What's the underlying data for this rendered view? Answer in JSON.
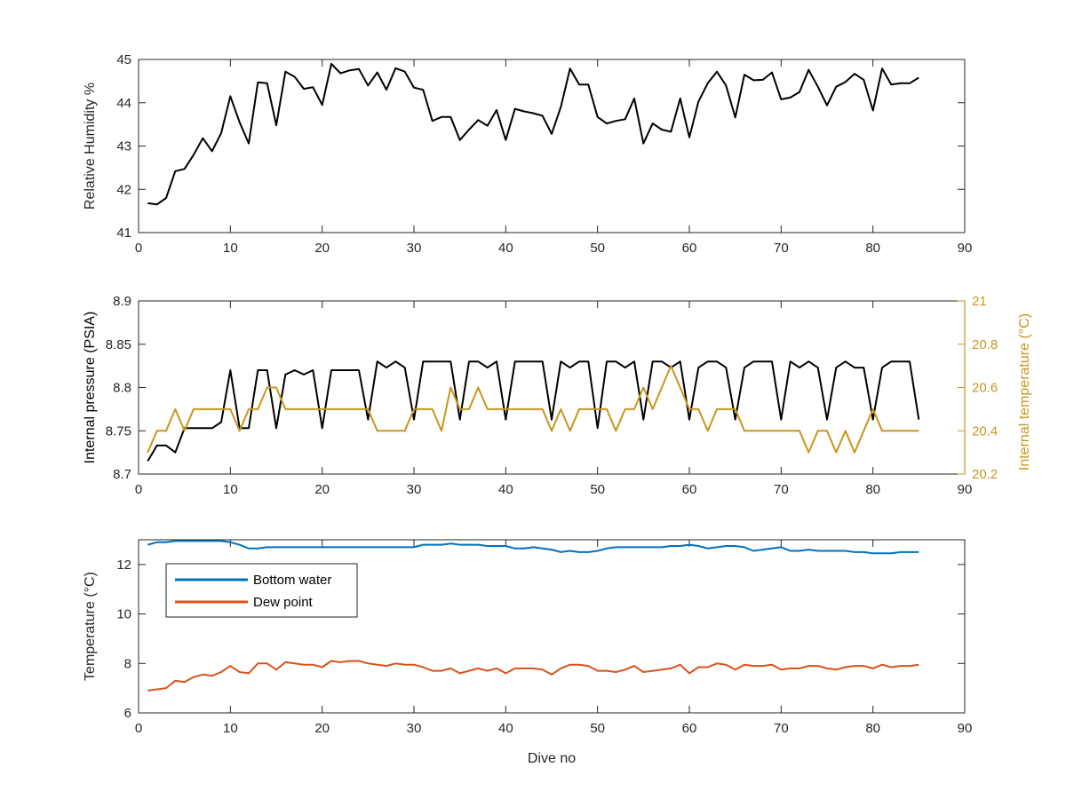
{
  "chart_data": [
    {
      "type": "line",
      "xlabel": "",
      "ylabel": "Relative Humidity %",
      "xlim": [
        0,
        90
      ],
      "ylim": [
        41,
        45
      ],
      "xticks": [
        0,
        10,
        20,
        30,
        40,
        50,
        60,
        70,
        80,
        90
      ],
      "yticks": [
        41,
        42,
        43,
        44,
        45
      ],
      "grid": false,
      "series": [
        {
          "color": "#000000",
          "x": [
            1,
            2,
            3,
            4,
            5,
            6,
            7,
            8,
            9,
            10,
            11,
            12,
            13,
            14,
            15,
            16,
            17,
            18,
            19,
            20,
            21,
            22,
            23,
            24,
            25,
            26,
            27,
            28,
            29,
            30,
            31,
            32,
            33,
            34,
            35,
            36,
            37,
            38,
            39,
            40,
            41,
            42,
            43,
            44,
            45,
            46,
            47,
            48,
            49,
            50,
            51,
            52,
            53,
            54,
            55,
            56,
            57,
            58,
            59,
            60,
            61,
            62,
            63,
            64,
            65,
            66,
            67,
            68,
            69,
            70,
            71,
            72,
            73,
            74,
            75,
            76,
            77,
            78,
            79,
            80,
            81,
            82,
            83,
            84,
            85
          ],
          "y": [
            41.68,
            41.65,
            41.8,
            42.42,
            42.47,
            42.8,
            43.18,
            42.88,
            43.3,
            44.15,
            43.55,
            43.06,
            44.47,
            44.45,
            43.48,
            44.72,
            44.6,
            44.32,
            44.36,
            43.95,
            44.9,
            44.68,
            44.75,
            44.78,
            44.4,
            44.7,
            44.3,
            44.8,
            44.72,
            44.35,
            44.3,
            43.58,
            43.67,
            43.67,
            43.14,
            43.38,
            43.6,
            43.47,
            43.83,
            43.14,
            43.86,
            43.8,
            43.76,
            43.7,
            43.28,
            43.9,
            44.79,
            44.42,
            44.42,
            43.67,
            43.52,
            43.58,
            43.62,
            44.1,
            43.06,
            43.52,
            43.38,
            43.33,
            44.1,
            43.2,
            44.03,
            44.45,
            44.72,
            44.4,
            43.66,
            44.65,
            44.52,
            44.53,
            44.7,
            44.08,
            44.12,
            44.25,
            44.76,
            44.37,
            43.94,
            44.37,
            44.48,
            44.67,
            44.53,
            43.82,
            44.79,
            44.42,
            44.45,
            44.45,
            44.58
          ]
        }
      ]
    },
    {
      "type": "line",
      "xlabel": "",
      "ylabel": "Internal pressure (PSIA)",
      "ylabel_right": "Internal temperature (°C)",
      "xlim": [
        0,
        90
      ],
      "ylim": [
        8.7,
        8.9
      ],
      "ylim_right": [
        20.2,
        21
      ],
      "xticks": [
        0,
        10,
        20,
        30,
        40,
        50,
        60,
        70,
        80,
        90
      ],
      "yticks": [
        "8.7",
        "8.75",
        "8.8",
        "8.85",
        "8.9"
      ],
      "yticks_right": [
        "20.2",
        "20.4",
        "20.6",
        "20.8",
        "21"
      ],
      "grid": false,
      "series": [
        {
          "axis": "left",
          "color": "#000000",
          "x": [
            1,
            2,
            3,
            4,
            5,
            6,
            7,
            8,
            9,
            10,
            11,
            12,
            13,
            14,
            15,
            16,
            17,
            18,
            19,
            20,
            21,
            22,
            23,
            24,
            25,
            26,
            27,
            28,
            29,
            30,
            31,
            32,
            33,
            34,
            35,
            36,
            37,
            38,
            39,
            40,
            41,
            42,
            43,
            44,
            45,
            46,
            47,
            48,
            49,
            50,
            51,
            52,
            53,
            54,
            55,
            56,
            57,
            58,
            59,
            60,
            61,
            62,
            63,
            64,
            65,
            66,
            67,
            68,
            69,
            70,
            71,
            72,
            73,
            74,
            75,
            76,
            77,
            78,
            79,
            80,
            81,
            82,
            83,
            84,
            85
          ],
          "y": [
            8.715,
            8.733,
            8.733,
            8.725,
            8.753,
            8.753,
            8.753,
            8.753,
            8.76,
            8.82,
            8.753,
            8.753,
            8.82,
            8.82,
            8.753,
            8.815,
            8.82,
            8.815,
            8.82,
            8.753,
            8.82,
            8.82,
            8.82,
            8.82,
            8.763,
            8.83,
            8.823,
            8.83,
            8.823,
            8.763,
            8.83,
            8.83,
            8.83,
            8.83,
            8.763,
            8.83,
            8.83,
            8.823,
            8.83,
            8.763,
            8.83,
            8.83,
            8.83,
            8.83,
            8.763,
            8.83,
            8.823,
            8.83,
            8.83,
            8.753,
            8.83,
            8.83,
            8.823,
            8.83,
            8.763,
            8.83,
            8.83,
            8.823,
            8.83,
            8.763,
            8.823,
            8.83,
            8.83,
            8.823,
            8.763,
            8.823,
            8.83,
            8.83,
            8.83,
            8.763,
            8.83,
            8.823,
            8.83,
            8.823,
            8.763,
            8.823,
            8.83,
            8.823,
            8.823,
            8.763,
            8.823,
            8.83,
            8.83,
            8.83,
            8.763
          ]
        },
        {
          "axis": "right",
          "color": "#C8961E",
          "x": [
            1,
            2,
            3,
            4,
            5,
            6,
            7,
            8,
            9,
            10,
            11,
            12,
            13,
            14,
            15,
            16,
            17,
            18,
            19,
            20,
            21,
            22,
            23,
            24,
            25,
            26,
            27,
            28,
            29,
            30,
            31,
            32,
            33,
            34,
            35,
            36,
            37,
            38,
            39,
            40,
            41,
            42,
            43,
            44,
            45,
            46,
            47,
            48,
            49,
            50,
            51,
            52,
            53,
            54,
            55,
            56,
            57,
            58,
            59,
            60,
            61,
            62,
            63,
            64,
            65,
            66,
            67,
            68,
            69,
            70,
            71,
            72,
            73,
            74,
            75,
            76,
            77,
            78,
            79,
            80,
            81,
            82,
            83,
            84,
            85
          ],
          "y": [
            20.3,
            20.4,
            20.4,
            20.5,
            20.4,
            20.5,
            20.5,
            20.5,
            20.5,
            20.5,
            20.4,
            20.5,
            20.5,
            20.6,
            20.6,
            20.5,
            20.5,
            20.5,
            20.5,
            20.5,
            20.5,
            20.5,
            20.5,
            20.5,
            20.5,
            20.4,
            20.4,
            20.4,
            20.4,
            20.5,
            20.5,
            20.5,
            20.4,
            20.6,
            20.5,
            20.5,
            20.6,
            20.5,
            20.5,
            20.5,
            20.5,
            20.5,
            20.5,
            20.5,
            20.4,
            20.5,
            20.4,
            20.5,
            20.5,
            20.5,
            20.5,
            20.4,
            20.5,
            20.5,
            20.6,
            20.5,
            20.6,
            20.7,
            20.6,
            20.5,
            20.5,
            20.4,
            20.5,
            20.5,
            20.5,
            20.4,
            20.4,
            20.4,
            20.4,
            20.4,
            20.4,
            20.4,
            20.3,
            20.4,
            20.4,
            20.3,
            20.4,
            20.3,
            20.4,
            20.5,
            20.4,
            20.4,
            20.4,
            20.4,
            20.4
          ]
        }
      ]
    },
    {
      "type": "line",
      "xlabel": "Dive no",
      "ylabel": "Temperature (°C)",
      "xlim": [
        0,
        90
      ],
      "ylim": [
        6,
        13
      ],
      "xticks": [
        0,
        10,
        20,
        30,
        40,
        50,
        60,
        70,
        80,
        90
      ],
      "yticks": [
        6,
        8,
        10,
        12
      ],
      "grid": false,
      "legend": "top-left",
      "series": [
        {
          "name": "Bottom water",
          "color": "#0072BD",
          "x": [
            1,
            2,
            3,
            4,
            5,
            6,
            7,
            8,
            9,
            10,
            11,
            12,
            13,
            14,
            15,
            16,
            17,
            18,
            19,
            20,
            21,
            22,
            23,
            24,
            25,
            26,
            27,
            28,
            29,
            30,
            31,
            32,
            33,
            34,
            35,
            36,
            37,
            38,
            39,
            40,
            41,
            42,
            43,
            44,
            45,
            46,
            47,
            48,
            49,
            50,
            51,
            52,
            53,
            54,
            55,
            56,
            57,
            58,
            59,
            60,
            61,
            62,
            63,
            64,
            65,
            66,
            67,
            68,
            69,
            70,
            71,
            72,
            73,
            74,
            75,
            76,
            77,
            78,
            79,
            80,
            81,
            82,
            83,
            84,
            85
          ],
          "y": [
            12.8,
            12.9,
            12.9,
            12.95,
            12.95,
            12.95,
            12.95,
            12.95,
            12.95,
            12.9,
            12.8,
            12.65,
            12.65,
            12.7,
            12.7,
            12.7,
            12.7,
            12.7,
            12.7,
            12.7,
            12.7,
            12.7,
            12.7,
            12.7,
            12.7,
            12.7,
            12.7,
            12.7,
            12.7,
            12.7,
            12.8,
            12.8,
            12.8,
            12.85,
            12.8,
            12.8,
            12.8,
            12.75,
            12.75,
            12.75,
            12.65,
            12.65,
            12.7,
            12.65,
            12.6,
            12.5,
            12.55,
            12.5,
            12.5,
            12.55,
            12.65,
            12.7,
            12.7,
            12.7,
            12.7,
            12.7,
            12.7,
            12.75,
            12.75,
            12.8,
            12.75,
            12.65,
            12.7,
            12.75,
            12.75,
            12.7,
            12.55,
            12.6,
            12.65,
            12.7,
            12.55,
            12.55,
            12.6,
            12.55,
            12.55,
            12.55,
            12.55,
            12.5,
            12.5,
            12.45,
            12.45,
            12.45,
            12.5,
            12.5,
            12.5
          ]
        },
        {
          "name": "Dew point",
          "color": "#D95319",
          "x": [
            1,
            2,
            3,
            4,
            5,
            6,
            7,
            8,
            9,
            10,
            11,
            12,
            13,
            14,
            15,
            16,
            17,
            18,
            19,
            20,
            21,
            22,
            23,
            24,
            25,
            26,
            27,
            28,
            29,
            30,
            31,
            32,
            33,
            34,
            35,
            36,
            37,
            38,
            39,
            40,
            41,
            42,
            43,
            44,
            45,
            46,
            47,
            48,
            49,
            50,
            51,
            52,
            53,
            54,
            55,
            56,
            57,
            58,
            59,
            60,
            61,
            62,
            63,
            64,
            65,
            66,
            67,
            68,
            69,
            70,
            71,
            72,
            73,
            74,
            75,
            76,
            77,
            78,
            79,
            80,
            81,
            82,
            83,
            84,
            85
          ],
          "y": [
            6.9,
            6.95,
            7.0,
            7.3,
            7.25,
            7.45,
            7.55,
            7.5,
            7.65,
            7.9,
            7.65,
            7.6,
            8.0,
            8.0,
            7.75,
            8.05,
            8.0,
            7.95,
            7.95,
            7.85,
            8.1,
            8.05,
            8.1,
            8.1,
            8.0,
            7.95,
            7.9,
            8.0,
            7.95,
            7.95,
            7.85,
            7.7,
            7.7,
            7.8,
            7.6,
            7.7,
            7.8,
            7.7,
            7.8,
            7.6,
            7.8,
            7.8,
            7.8,
            7.75,
            7.55,
            7.8,
            7.95,
            7.95,
            7.9,
            7.7,
            7.7,
            7.65,
            7.75,
            7.9,
            7.65,
            7.7,
            7.75,
            7.8,
            7.95,
            7.6,
            7.85,
            7.85,
            8.0,
            7.95,
            7.75,
            7.95,
            7.9,
            7.9,
            7.95,
            7.75,
            7.8,
            7.8,
            7.9,
            7.9,
            7.8,
            7.75,
            7.85,
            7.9,
            7.9,
            7.8,
            7.95,
            7.85,
            7.9,
            7.9,
            7.95
          ]
        }
      ]
    }
  ]
}
